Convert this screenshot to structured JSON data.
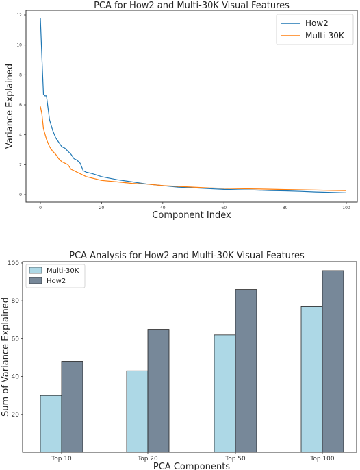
{
  "chart_data": [
    {
      "type": "line",
      "title": "PCA for How2 and Multi-30K Visual Features",
      "xlabel": "Component Index",
      "ylabel": "Variance Explained",
      "xlim": [
        0,
        100
      ],
      "ylim": [
        0,
        12
      ],
      "xticks": [
        0,
        20,
        40,
        60,
        80,
        100
      ],
      "yticks": [
        0,
        2,
        4,
        6,
        8,
        10,
        12
      ],
      "legend": "top-right",
      "grid": false,
      "series": [
        {
          "name": "How2",
          "color": "#1f77b4",
          "x": [
            0,
            0.5,
            1,
            1.5,
            2,
            3,
            4,
            5,
            6,
            7,
            8,
            9,
            10,
            11,
            12,
            13,
            14,
            15,
            17,
            20,
            25,
            30,
            35,
            40,
            45,
            50,
            55,
            60,
            65,
            70,
            75,
            80,
            85,
            90,
            95,
            100
          ],
          "y": [
            11.8,
            9.2,
            6.7,
            6.6,
            6.6,
            5.0,
            4.3,
            3.8,
            3.5,
            3.2,
            3.1,
            2.9,
            2.7,
            2.4,
            2.3,
            2.1,
            1.6,
            1.5,
            1.4,
            1.2,
            1.0,
            0.85,
            0.7,
            0.6,
            0.5,
            0.45,
            0.4,
            0.35,
            0.32,
            0.3,
            0.27,
            0.25,
            0.22,
            0.18,
            0.15,
            0.12
          ]
        },
        {
          "name": "Multi-30K",
          "color": "#ff7f0e",
          "x": [
            0,
            0.5,
            1,
            2,
            3,
            4,
            5,
            6,
            7,
            8,
            9,
            10,
            12,
            15,
            20,
            25,
            30,
            35,
            40,
            45,
            50,
            55,
            60,
            65,
            70,
            75,
            80,
            85,
            90,
            95,
            100
          ],
          "y": [
            5.9,
            5.4,
            4.4,
            3.7,
            3.2,
            2.9,
            2.7,
            2.4,
            2.2,
            2.1,
            2.0,
            1.7,
            1.5,
            1.2,
            0.95,
            0.85,
            0.75,
            0.7,
            0.6,
            0.55,
            0.5,
            0.45,
            0.42,
            0.4,
            0.38,
            0.36,
            0.34,
            0.32,
            0.3,
            0.28,
            0.27
          ]
        }
      ]
    },
    {
      "type": "bar",
      "title": "PCA Analysis for How2 and Multi-30K Visual Features",
      "xlabel": "PCA Components",
      "ylabel": "Sum of Variance Explained",
      "categories": [
        "Top 10",
        "Top 20",
        "Top 50",
        "Top 100"
      ],
      "ylim": [
        0,
        100
      ],
      "yticks": [
        20,
        40,
        60,
        80,
        100
      ],
      "legend": "top-left",
      "grid": false,
      "series": [
        {
          "name": "Multi-30K",
          "color": "#add8e6",
          "values": [
            30,
            43,
            62,
            77
          ]
        },
        {
          "name": "How2",
          "color": "#778899",
          "values": [
            48,
            65,
            86,
            96
          ]
        }
      ]
    }
  ]
}
